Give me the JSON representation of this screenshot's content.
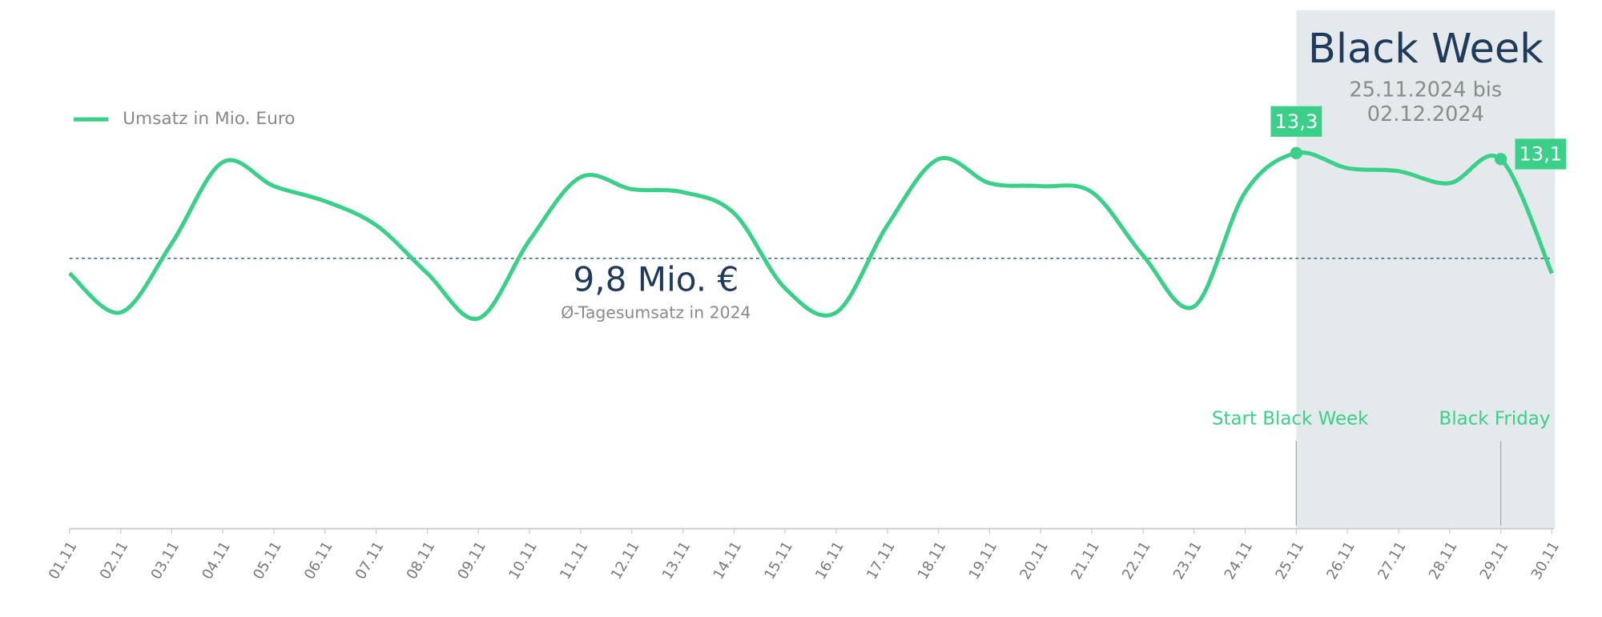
{
  "chart_data": {
    "type": "line",
    "categories": [
      "01.11",
      "02.11",
      "03.11",
      "04.11",
      "05.11",
      "06.11",
      "07.11",
      "08.11",
      "09.11",
      "10.11",
      "11.11",
      "12.11",
      "13.11",
      "14.11",
      "15.11",
      "16.11",
      "17.11",
      "18.11",
      "19.11",
      "20.11",
      "21.11",
      "22.11",
      "23.11",
      "24.11",
      "25.11",
      "26.11",
      "27.11",
      "28.11",
      "29.11",
      "30.11"
    ],
    "series": [
      {
        "name": "Umsatz in Mio. Euro",
        "color": "#3ccf8a",
        "values": [
          9.3,
          8.0,
          10.3,
          13.0,
          12.2,
          11.7,
          10.9,
          9.3,
          7.8,
          10.4,
          12.5,
          12.1,
          12.0,
          11.3,
          8.8,
          8.0,
          10.9,
          13.1,
          12.3,
          12.2,
          12.0,
          9.9,
          8.2,
          12.0,
          13.3,
          12.8,
          12.7,
          12.3,
          13.1,
          9.3
        ],
        "value_labels": [
          null,
          null,
          null,
          null,
          null,
          null,
          null,
          null,
          null,
          null,
          null,
          null,
          null,
          null,
          null,
          null,
          null,
          null,
          null,
          null,
          null,
          null,
          null,
          null,
          "13,3",
          null,
          null,
          null,
          "13,1",
          null
        ]
      }
    ],
    "average": {
      "value": 9.8,
      "label": "9,8 Mio. €",
      "caption": "Ø-Tagesumsatz in 2024"
    },
    "highlight": {
      "title": "Black Week",
      "subtitle": [
        "25.11.2024 bis",
        "02.12.2024"
      ],
      "from": "25.11",
      "to": "30.11"
    },
    "annotations": [
      {
        "text": "Start Black Week",
        "category": "25.11"
      },
      {
        "text": "Black Friday",
        "category": "29.11"
      }
    ]
  }
}
